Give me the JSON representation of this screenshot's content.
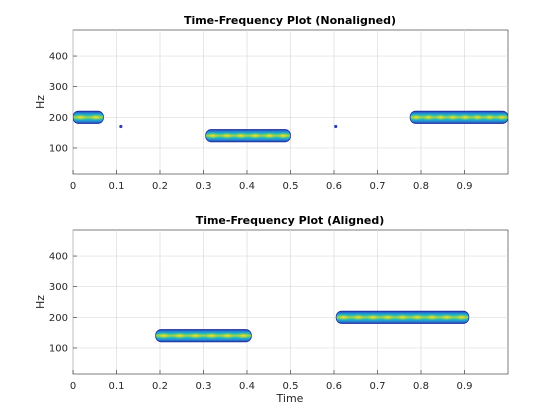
{
  "chart_data": [
    {
      "type": "heatmap",
      "title": "Time-Frequency Plot (Nonaligned)",
      "xlabel": "",
      "ylabel": "Hz",
      "xlim": [
        0,
        1.0
      ],
      "ylim": [
        15,
        485
      ],
      "xticks": [
        "0",
        "0.1",
        "0.2",
        "0.3",
        "0.4",
        "0.5",
        "0.6",
        "0.7",
        "0.8",
        "0.9"
      ],
      "yticks": [
        "100",
        "200",
        "300",
        "400"
      ],
      "grid": true,
      "colormap": "parula",
      "blobs": [
        {
          "t_start": 0.0,
          "t_end": 0.07,
          "freq": 200,
          "height": 40,
          "beads": 2
        },
        {
          "t_start": 0.305,
          "t_end": 0.5,
          "freq": 140,
          "height": 40,
          "beads": 6
        },
        {
          "t_start": 0.775,
          "t_end": 1.0,
          "freq": 200,
          "height": 40,
          "beads": 8
        }
      ],
      "specks": [
        {
          "t": 0.11,
          "freq": 170
        },
        {
          "t": 0.604,
          "freq": 170
        }
      ]
    },
    {
      "type": "heatmap",
      "title": "Time-Frequency Plot (Aligned)",
      "xlabel": "Time",
      "ylabel": "Hz",
      "xlim": [
        0,
        1.0
      ],
      "ylim": [
        15,
        485
      ],
      "xticks": [
        "0",
        "0.1",
        "0.2",
        "0.3",
        "0.4",
        "0.5",
        "0.6",
        "0.7",
        "0.8",
        "0.9"
      ],
      "yticks": [
        "100",
        "200",
        "300",
        "400"
      ],
      "grid": true,
      "colormap": "parula",
      "blobs": [
        {
          "t_start": 0.19,
          "t_end": 0.41,
          "freq": 140,
          "height": 40,
          "beads": 6
        },
        {
          "t_start": 0.605,
          "t_end": 0.91,
          "freq": 200,
          "height": 40,
          "beads": 9
        }
      ],
      "specks": []
    }
  ]
}
